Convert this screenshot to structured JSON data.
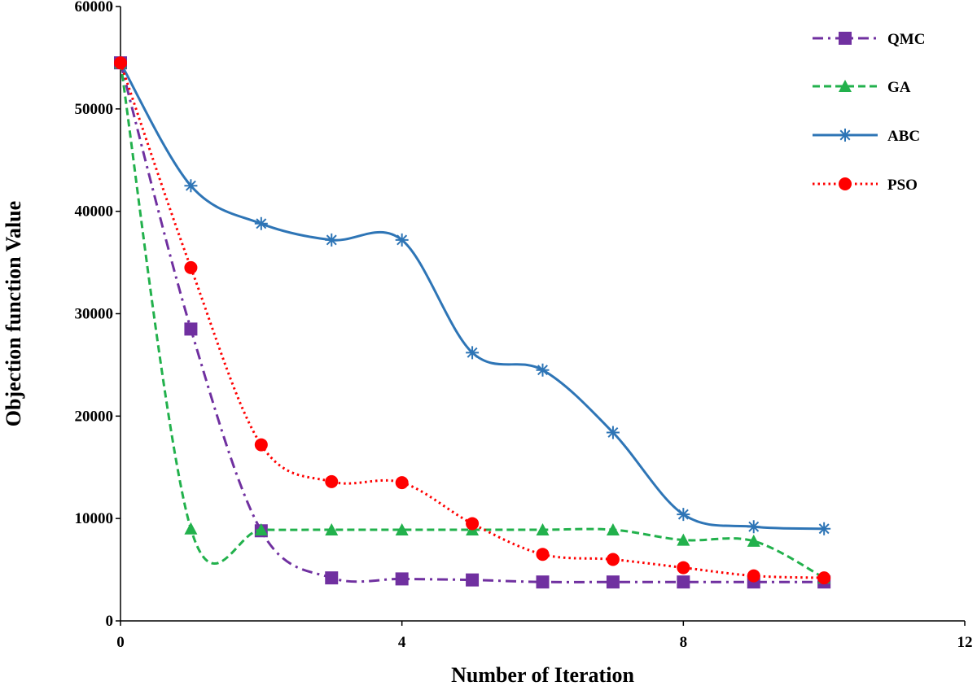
{
  "chart_data": {
    "type": "line",
    "title": "",
    "xlabel": "Number of Iteration",
    "ylabel": "Objection function Value",
    "xlim": [
      0,
      12
    ],
    "ylim": [
      0,
      60000
    ],
    "xticks": [
      0,
      4,
      8,
      12
    ],
    "yticks": [
      0,
      10000,
      20000,
      30000,
      40000,
      50000,
      60000
    ],
    "grid": false,
    "legend_position": "top-right",
    "series": [
      {
        "name": "QMC",
        "color": "#7030A0",
        "dash": "dashdot",
        "marker": "square",
        "x": [
          0,
          1,
          2,
          3,
          4,
          5,
          6,
          7,
          8,
          9,
          10
        ],
        "y": [
          54500,
          28500,
          8800,
          4200,
          4100,
          4000,
          3800,
          3800,
          3800,
          3800,
          3800
        ]
      },
      {
        "name": "GA",
        "color": "#22B14C",
        "dash": "dashed",
        "marker": "triangle",
        "x": [
          0,
          1,
          2,
          3,
          4,
          5,
          6,
          7,
          8,
          9,
          10
        ],
        "y": [
          54500,
          9000,
          8900,
          8900,
          8900,
          8900,
          8900,
          8900,
          7900,
          7800,
          4200
        ]
      },
      {
        "name": "ABC",
        "color": "#2E75B6",
        "dash": "solid",
        "marker": "star",
        "x": [
          0,
          1,
          2,
          3,
          4,
          5,
          6,
          7,
          8,
          9,
          10
        ],
        "y": [
          54500,
          42500,
          38800,
          37200,
          37200,
          26200,
          24500,
          18400,
          10400,
          9200,
          9000
        ]
      },
      {
        "name": "PSO",
        "color": "#FF0000",
        "dash": "dotted",
        "marker": "circle",
        "x": [
          0,
          1,
          2,
          3,
          4,
          5,
          6,
          7,
          8,
          9,
          10
        ],
        "y": [
          54500,
          34500,
          17200,
          13600,
          13500,
          9500,
          6500,
          6000,
          5200,
          4400,
          4200
        ]
      }
    ]
  }
}
